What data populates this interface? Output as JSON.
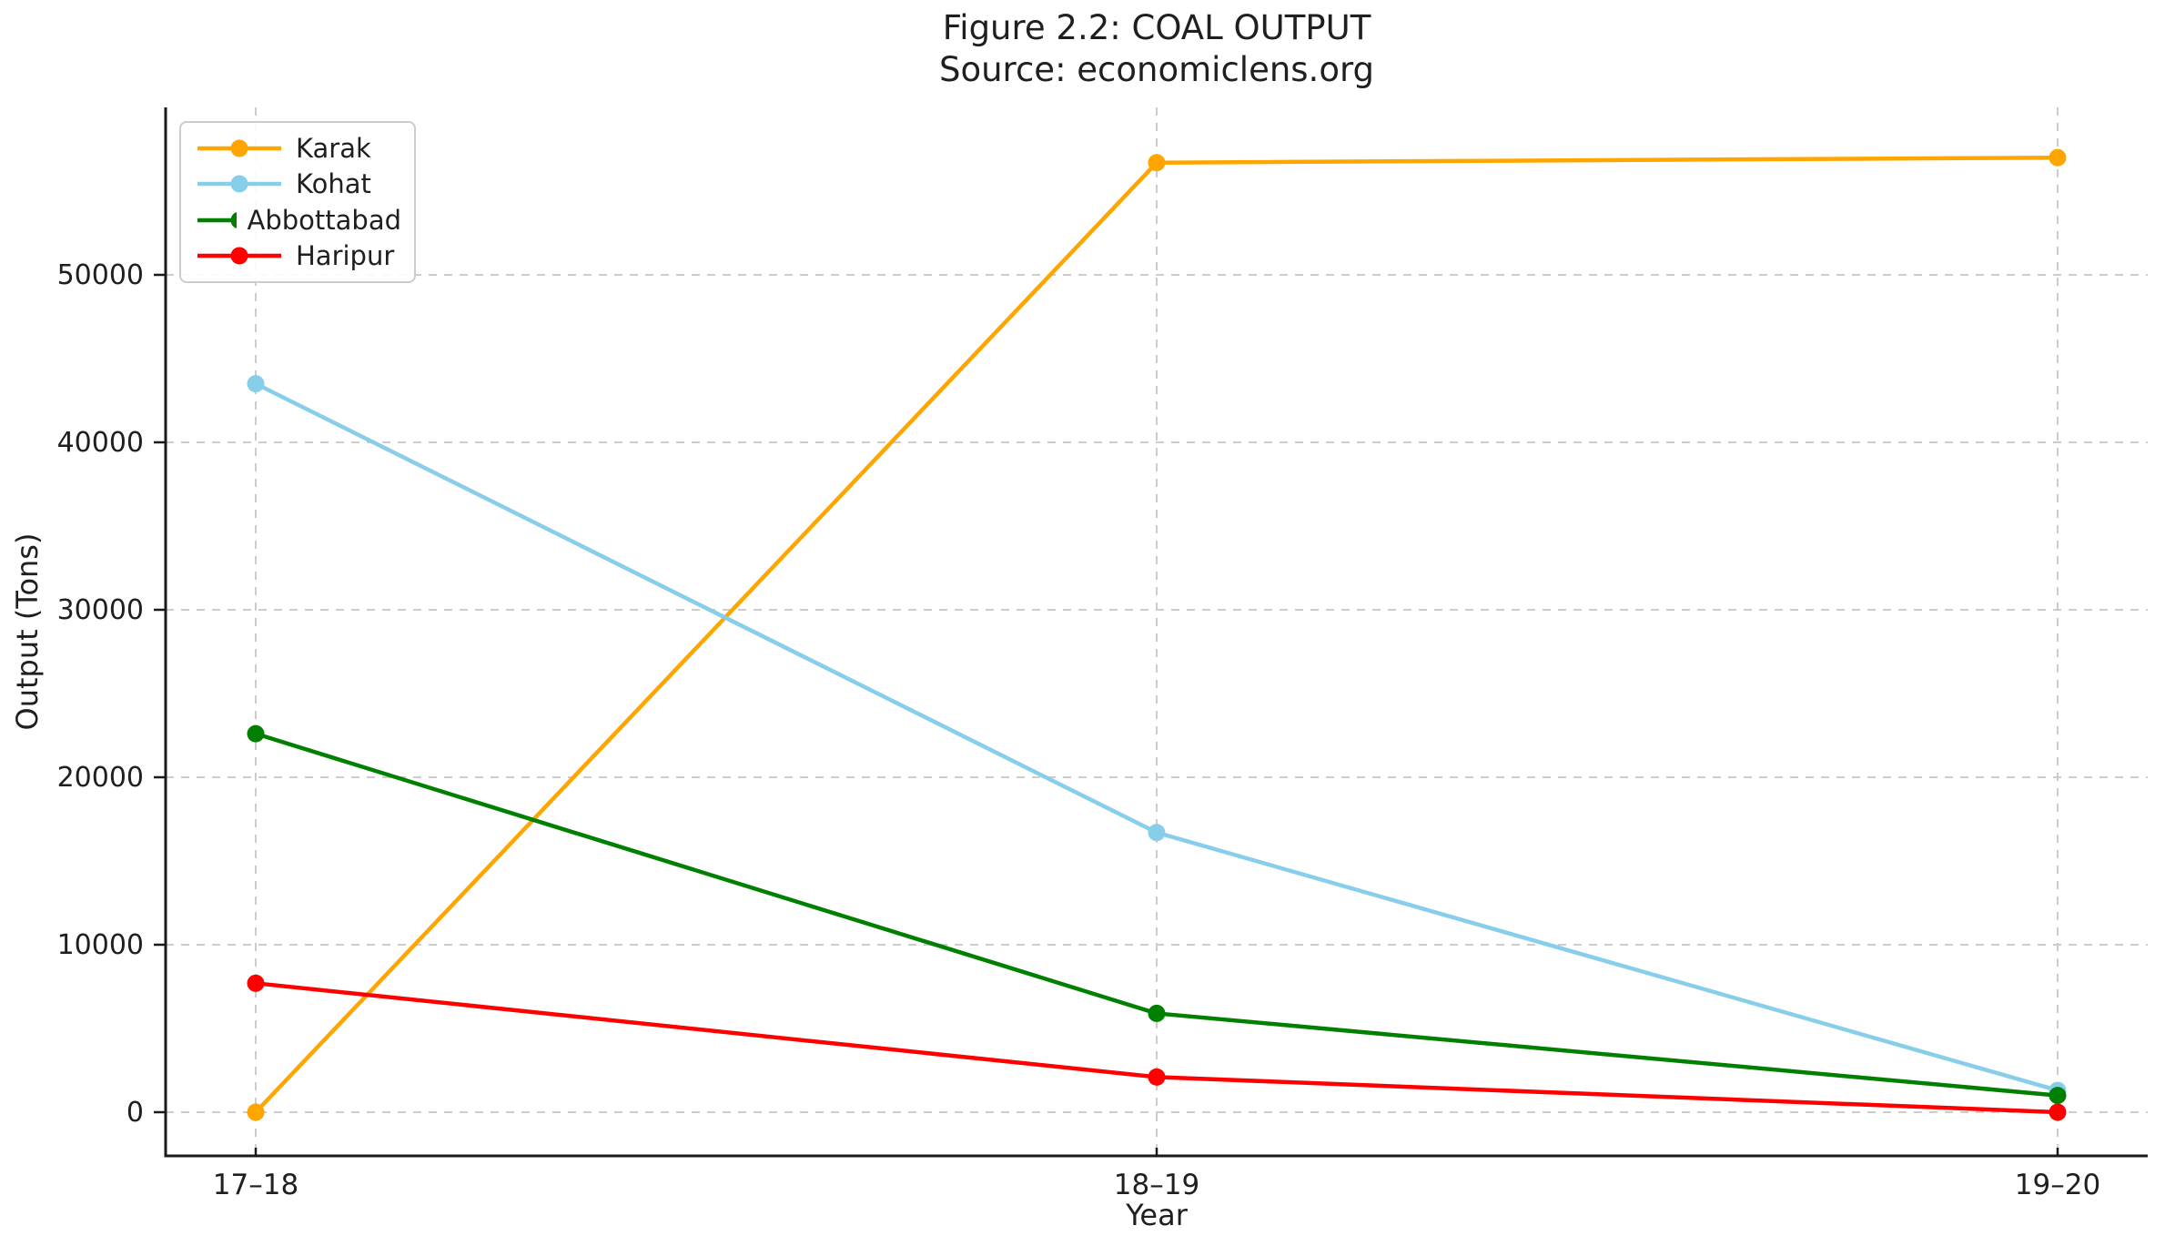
{
  "chart_data": {
    "type": "line",
    "title": "Figure 2.2: COAL OUTPUT",
    "subtitle": "Source: economiclens.org",
    "xlabel": "Year",
    "ylabel": "Output (Tons)",
    "categories": [
      "17–18",
      "18–19",
      "19–20"
    ],
    "series": [
      {
        "name": "Karak",
        "color": "#FFA500",
        "values": [
          0,
          56700,
          57000
        ]
      },
      {
        "name": "Kohat",
        "color": "#87CEEB",
        "values": [
          43500,
          16700,
          1300
        ]
      },
      {
        "name": "Abbottabad",
        "color": "#008000",
        "values": [
          22600,
          5900,
          1000
        ]
      },
      {
        "name": "Haripur",
        "color": "#FF0000",
        "values": [
          7700,
          2100,
          0
        ]
      }
    ],
    "yticks": [
      0,
      10000,
      20000,
      30000,
      40000,
      50000
    ],
    "ylim": [
      -2609,
      60000
    ],
    "xlim": [
      -0.1,
      2.1
    ],
    "grid": {
      "visible": true,
      "style": "dashed",
      "color": "#cccccc"
    },
    "legend": {
      "position": "upper-left"
    },
    "axis_color": "#1a1a1a",
    "text_color": "#1f1f1f"
  }
}
